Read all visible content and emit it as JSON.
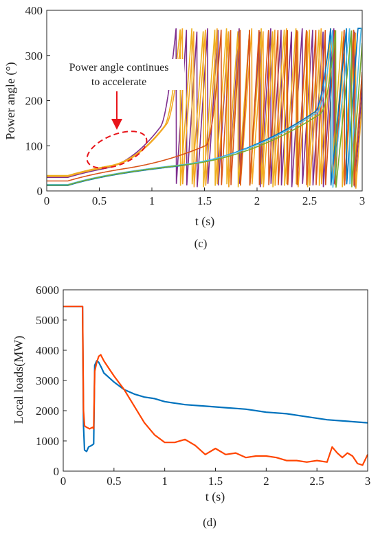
{
  "chart_data": [
    {
      "panel": "(c)",
      "type": "line",
      "xlabel": "t (s)",
      "ylabel": "Power angle (°)",
      "xlim": [
        0,
        3
      ],
      "ylim": [
        0,
        400
      ],
      "xticks": [
        "0",
        "0.5",
        "1",
        "1.5",
        "2",
        "2.5",
        "3"
      ],
      "yticks": [
        "0",
        "100",
        "200",
        "300",
        "400"
      ],
      "annotation": "Power angle continues to accelerate",
      "series": [
        {
          "color": "#7E2F8E",
          "start": 30,
          "knee": 0.55,
          "wrap_times": [
            1.23,
            1.33,
            1.43,
            1.53,
            1.63,
            1.73,
            1.83,
            1.93,
            2.03,
            2.13,
            2.23,
            2.33,
            2.43,
            2.53,
            2.63,
            2.73,
            2.83,
            2.93
          ]
        },
        {
          "color": "#EDB120",
          "start": 34,
          "knee": 0.6,
          "wrap_times": [
            1.27,
            1.38,
            1.49,
            1.6,
            1.71,
            1.82,
            1.93,
            2.04,
            2.15,
            2.26,
            2.37,
            2.48,
            2.59,
            2.7,
            2.81,
            2.92
          ]
        },
        {
          "color": "#F5A623",
          "start": 32,
          "knee": 0.6,
          "wrap_times": [
            1.29,
            1.4,
            1.51,
            1.62,
            1.73,
            1.84,
            1.95,
            2.06,
            2.17,
            2.28,
            2.39,
            2.5,
            2.61,
            2.72,
            2.83,
            2.94
          ]
        },
        {
          "color": "#D95319",
          "start": 22,
          "knee": 0.75,
          "wrap_times": [
            1.66,
            1.75,
            1.84,
            1.93,
            2.02,
            2.11,
            2.2,
            2.29,
            2.38,
            2.47,
            2.56,
            2.65,
            2.74,
            2.83,
            2.92
          ]
        },
        {
          "color": "#0072BD",
          "start": 12,
          "knee": 1.2,
          "wrap_times": [
            2.7,
            2.85
          ]
        },
        {
          "color": "#4DBEEE",
          "start": 14,
          "knee": 1.25,
          "wrap_times": [
            2.72,
            2.88
          ]
        },
        {
          "color": "#77AC30",
          "start": 13,
          "knee": 1.3,
          "wrap_times": [
            2.75,
            2.9
          ]
        }
      ]
    },
    {
      "panel": "(d)",
      "type": "line",
      "xlabel": "t (s)",
      "ylabel": "Local loads(MW)",
      "xlim": [
        0,
        3
      ],
      "ylim": [
        0,
        6000
      ],
      "xticks": [
        "0",
        "0.5",
        "1",
        "1.5",
        "2",
        "2.5",
        "3"
      ],
      "yticks": [
        "0",
        "1000",
        "2000",
        "3000",
        "4000",
        "5000",
        "6000"
      ],
      "series": [
        {
          "color": "#0072BD",
          "x": [
            0,
            0.19,
            0.2,
            0.21,
            0.23,
            0.25,
            0.28,
            0.3,
            0.31,
            0.33,
            0.35,
            0.38,
            0.4,
            0.45,
            0.5,
            0.6,
            0.7,
            0.8,
            0.9,
            1.0,
            1.2,
            1.4,
            1.6,
            1.8,
            2.0,
            2.2,
            2.4,
            2.6,
            2.8,
            3.0
          ],
          "y": [
            5450,
            5450,
            1500,
            700,
            650,
            800,
            850,
            900,
            3500,
            3650,
            3600,
            3400,
            3250,
            3100,
            2950,
            2700,
            2550,
            2450,
            2400,
            2300,
            2200,
            2150,
            2100,
            2050,
            1950,
            1900,
            1800,
            1700,
            1650,
            1600
          ]
        },
        {
          "color": "#FF4500",
          "x": [
            0,
            0.19,
            0.2,
            0.21,
            0.23,
            0.26,
            0.29,
            0.3,
            0.31,
            0.33,
            0.35,
            0.37,
            0.4,
            0.45,
            0.5,
            0.6,
            0.7,
            0.8,
            0.9,
            1.0,
            1.1,
            1.2,
            1.3,
            1.4,
            1.5,
            1.6,
            1.7,
            1.8,
            1.9,
            2.0,
            2.1,
            2.2,
            2.3,
            2.4,
            2.5,
            2.6,
            2.65,
            2.7,
            2.75,
            2.8,
            2.85,
            2.9,
            2.95,
            3.0
          ],
          "y": [
            5450,
            5450,
            2000,
            1500,
            1450,
            1400,
            1450,
            1400,
            3300,
            3600,
            3800,
            3850,
            3650,
            3400,
            3150,
            2700,
            2150,
            1600,
            1200,
            950,
            950,
            1050,
            850,
            550,
            750,
            550,
            600,
            450,
            500,
            500,
            450,
            350,
            350,
            300,
            350,
            300,
            800,
            600,
            450,
            600,
            500,
            250,
            200,
            550
          ]
        }
      ]
    }
  ]
}
